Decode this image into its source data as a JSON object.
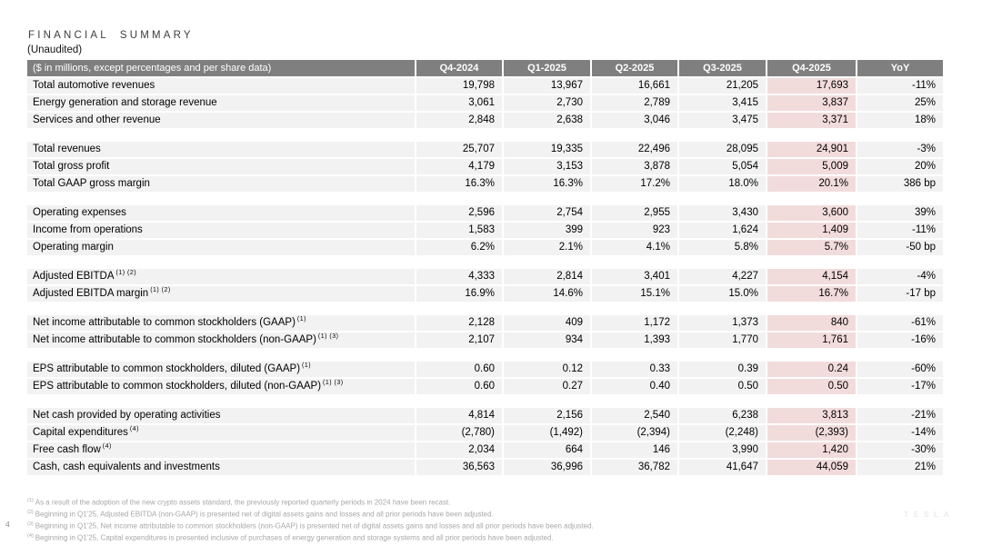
{
  "page": {
    "title": "FINANCIAL SUMMARY",
    "subtitle": "(Unaudited)",
    "page_number": "4",
    "watermark": "TESLA"
  },
  "table": {
    "columns": [
      "($ in millions, except percentages and per share data)",
      "Q4-2024",
      "Q1-2025",
      "Q2-2025",
      "Q3-2025",
      "Q4-2025",
      "YoY"
    ],
    "highlight_column": "Q4-2025",
    "colors": {
      "header_bg": "#7f7f7f",
      "row_bg": "#f2f2f2",
      "highlight_bg": "#f2dcdb"
    },
    "rows": [
      {
        "label": "Total automotive revenues",
        "sup": "",
        "values": [
          "19,798",
          "13,967",
          "16,661",
          "21,205",
          "17,693",
          "-11%"
        ]
      },
      {
        "label": "Energy generation and storage revenue",
        "sup": "",
        "values": [
          "3,061",
          "2,730",
          "2,789",
          "3,415",
          "3,837",
          "25%"
        ]
      },
      {
        "label": "Services and other revenue",
        "sup": "",
        "values": [
          "2,848",
          "2,638",
          "3,046",
          "3,475",
          "3,371",
          "18%"
        ]
      },
      {
        "spacer": true
      },
      {
        "label": "Total revenues",
        "sup": "",
        "values": [
          "25,707",
          "19,335",
          "22,496",
          "28,095",
          "24,901",
          "-3%"
        ]
      },
      {
        "label": "Total gross profit",
        "sup": "",
        "values": [
          "4,179",
          "3,153",
          "3,878",
          "5,054",
          "5,009",
          "20%"
        ]
      },
      {
        "label": "Total GAAP gross margin",
        "sup": "",
        "values": [
          "16.3%",
          "16.3%",
          "17.2%",
          "18.0%",
          "20.1%",
          "386 bp"
        ]
      },
      {
        "spacer": true
      },
      {
        "label": "Operating expenses",
        "sup": "",
        "values": [
          "2,596",
          "2,754",
          "2,955",
          "3,430",
          "3,600",
          "39%"
        ]
      },
      {
        "label": "Income from operations",
        "sup": "",
        "values": [
          "1,583",
          "399",
          "923",
          "1,624",
          "1,409",
          "-11%"
        ]
      },
      {
        "label": "Operating margin",
        "sup": "",
        "values": [
          "6.2%",
          "2.1%",
          "4.1%",
          "5.8%",
          "5.7%",
          "-50 bp"
        ]
      },
      {
        "spacer": true
      },
      {
        "label": "Adjusted EBITDA",
        "sup": "(1) (2)",
        "values": [
          "4,333",
          "2,814",
          "3,401",
          "4,227",
          "4,154",
          "-4%"
        ]
      },
      {
        "label": "Adjusted EBITDA margin",
        "sup": "(1) (2)",
        "values": [
          "16.9%",
          "14.6%",
          "15.1%",
          "15.0%",
          "16.7%",
          "-17 bp"
        ]
      },
      {
        "spacer": true
      },
      {
        "label": "Net income attributable to common stockholders (GAAP)",
        "sup": "(1)",
        "values": [
          "2,128",
          "409",
          "1,172",
          "1,373",
          "840",
          "-61%"
        ]
      },
      {
        "label": "Net income attributable to common stockholders (non-GAAP)",
        "sup": "(1) (3)",
        "values": [
          "2,107",
          "934",
          "1,393",
          "1,770",
          "1,761",
          "-16%"
        ]
      },
      {
        "spacer": true
      },
      {
        "label": "EPS attributable to common stockholders, diluted (GAAP)",
        "sup": "(1)",
        "values": [
          "0.60",
          "0.12",
          "0.33",
          "0.39",
          "0.24",
          "-60%"
        ]
      },
      {
        "label": "EPS attributable to common stockholders, diluted (non-GAAP)",
        "sup": "(1) (3)",
        "values": [
          "0.60",
          "0.27",
          "0.40",
          "0.50",
          "0.50",
          "-17%"
        ]
      },
      {
        "spacer": true
      },
      {
        "label": "Net cash provided by operating activities",
        "sup": "",
        "values": [
          "4,814",
          "2,156",
          "2,540",
          "6,238",
          "3,813",
          "-21%"
        ]
      },
      {
        "label": "Capital expenditures",
        "sup": "(4)",
        "values": [
          "(2,780)",
          "(1,492)",
          "(2,394)",
          "(2,248)",
          "(2,393)",
          "-14%"
        ]
      },
      {
        "label": "Free cash flow",
        "sup": "(4)",
        "values": [
          "2,034",
          "664",
          "146",
          "3,990",
          "1,420",
          "-30%"
        ]
      },
      {
        "label": "Cash, cash equivalents and investments",
        "sup": "",
        "values": [
          "36,563",
          "36,996",
          "36,782",
          "41,647",
          "44,059",
          "21%"
        ]
      }
    ]
  },
  "footnotes": [
    {
      "marker": "(1)",
      "text": "As a result of the adoption of the new crypto assets standard, the previously reported quarterly periods in 2024 have been recast."
    },
    {
      "marker": "(2)",
      "text": "Beginning in Q1'25, Adjusted EBITDA (non-GAAP) is presented net of digital assets gains and losses and all prior periods have been adjusted."
    },
    {
      "marker": "(3)",
      "text": "Beginning in Q1'25, Net income attributable to common stockholders (non-GAAP) is presented net of digital assets gains and losses and all prior periods have been adjusted."
    },
    {
      "marker": "(4)",
      "text": "Beginning in Q1'25, Capital expenditures is presented inclusive of purchases of energy generation and storage systems and all prior periods have been adjusted."
    }
  ]
}
